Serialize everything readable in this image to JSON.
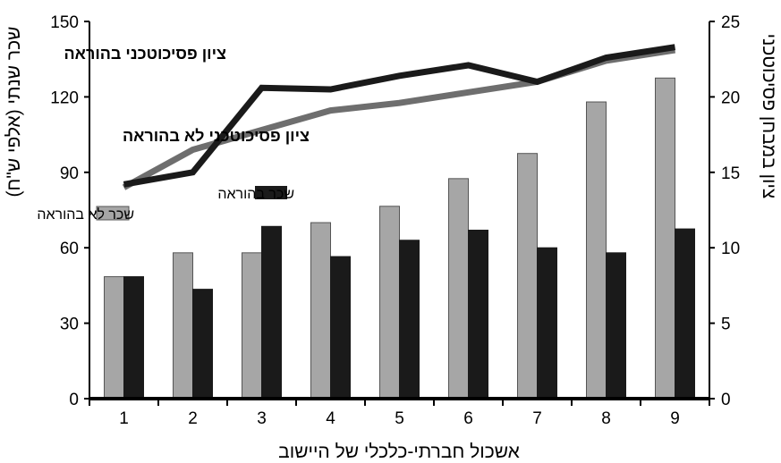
{
  "chart_data": {
    "type": "bar+line",
    "categories": [
      "1",
      "2",
      "3",
      "4",
      "5",
      "6",
      "7",
      "8",
      "9"
    ],
    "xlabel": "אשכול חברתי-כלכלי של היישוב",
    "ylabel_left": "שכר שנתי (אלפי ש\"ח)",
    "ylabel_right": "ציון במבחן פסיכוטכני",
    "ylim_left": [
      0,
      150
    ],
    "ylim_right": [
      0,
      25
    ],
    "yticks_left": [
      "0",
      "30",
      "60",
      "90",
      "120",
      "150"
    ],
    "yticks_right": [
      "0",
      "5",
      "10",
      "15",
      "20",
      "25"
    ],
    "grid": false,
    "bar_series": [
      {
        "name": "שכר לא בהוראה",
        "color": "#a6a6a6",
        "axis": "left",
        "values": [
          48.5,
          58,
          58,
          70,
          76.5,
          87.5,
          97.5,
          118,
          127.5
        ]
      },
      {
        "name": "שכר בהוראה",
        "color": "#1a1a1a",
        "axis": "left",
        "values": [
          48.5,
          43.5,
          68.5,
          56.5,
          63,
          67,
          60,
          58,
          67.5
        ]
      }
    ],
    "line_series": [
      {
        "name": "ציון פסיכוטכני בהוראה",
        "color": "#1a1a1a",
        "axis": "right",
        "values": [
          14.2,
          15,
          20.6,
          20.5,
          21.4,
          22.1,
          21,
          22.6,
          23.3
        ]
      },
      {
        "name": "ציון פסיכוטכני לא בהוראה",
        "color": "#6e6e6e",
        "axis": "right",
        "values": [
          14,
          16.5,
          17.8,
          19.1,
          19.6,
          20.3,
          21,
          22.4,
          23.1
        ]
      }
    ]
  }
}
